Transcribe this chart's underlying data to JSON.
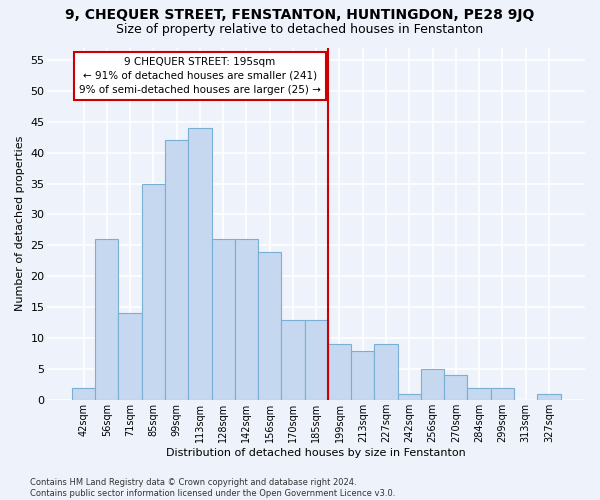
{
  "title": "9, CHEQUER STREET, FENSTANTON, HUNTINGDON, PE28 9JQ",
  "subtitle": "Size of property relative to detached houses in Fenstanton",
  "xlabel": "Distribution of detached houses by size in Fenstanton",
  "ylabel": "Number of detached properties",
  "categories": [
    "42sqm",
    "56sqm",
    "71sqm",
    "85sqm",
    "99sqm",
    "113sqm",
    "128sqm",
    "142sqm",
    "156sqm",
    "170sqm",
    "185sqm",
    "199sqm",
    "213sqm",
    "227sqm",
    "242sqm",
    "256sqm",
    "270sqm",
    "284sqm",
    "299sqm",
    "313sqm",
    "327sqm"
  ],
  "values": [
    2,
    26,
    14,
    35,
    42,
    44,
    26,
    26,
    24,
    13,
    13,
    9,
    8,
    9,
    1,
    5,
    4,
    2,
    2,
    0,
    1
  ],
  "bar_color": "#c5d8f0",
  "bar_edge_color": "#7aafd4",
  "vline_index": 11,
  "vline_color": "#cc0000",
  "annotation_text": "9 CHEQUER STREET: 195sqm\n← 91% of detached houses are smaller (241)\n9% of semi-detached houses are larger (25) →",
  "annotation_box_color": "#ffffff",
  "annotation_box_edge": "#cc0000",
  "ylim": [
    0,
    57
  ],
  "yticks": [
    0,
    5,
    10,
    15,
    20,
    25,
    30,
    35,
    40,
    45,
    50,
    55
  ],
  "footer": "Contains HM Land Registry data © Crown copyright and database right 2024.\nContains public sector information licensed under the Open Government Licence v3.0.",
  "bg_color": "#eef2fa",
  "grid_color": "#ffffff",
  "title_fontsize": 10,
  "subtitle_fontsize": 9
}
